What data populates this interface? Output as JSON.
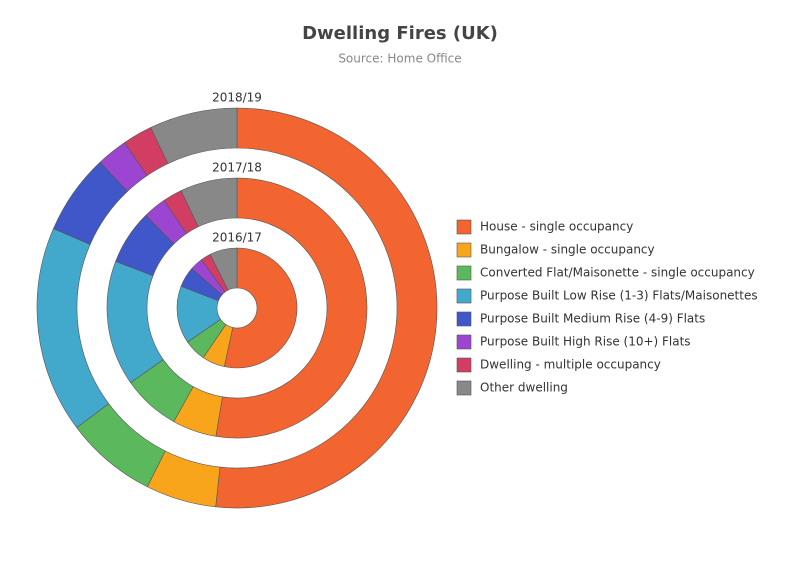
{
  "chart_data": {
    "type": "pie",
    "title": "Dwelling Fires (UK)",
    "subtitle": "Source: Home Office",
    "categories": [
      "House - single occupancy",
      "Bungalow - single occupancy",
      "Converted Flat/Maisonette - single occupancy",
      "Purpose Built Low Rise (1-3) Flats/Maisonettes",
      "Purpose Built Medium Rise (4-9) Flats",
      "Purpose Built High Rise (10+) Flats",
      "Dwelling - multiple occupancy",
      "Other dwelling"
    ],
    "colors": [
      "#f26430",
      "#f9a51b",
      "#5cb85c",
      "#43a9cc",
      "#3f57c9",
      "#9b45d1",
      "#d23e63",
      "#888888"
    ],
    "series": [
      {
        "name": "2016/17",
        "values": [
          53.4,
          6.1,
          5.9,
          15.5,
          5.5,
          3.5,
          2.7,
          7.4
        ]
      },
      {
        "name": "2017/18",
        "values": [
          52.7,
          5.5,
          7.2,
          15.6,
          6.8,
          2.9,
          2.4,
          7.1
        ]
      },
      {
        "name": "2018/19",
        "values": [
          51.7,
          5.7,
          7.4,
          16.7,
          6.5,
          2.5,
          2.4,
          7.1
        ]
      }
    ]
  }
}
